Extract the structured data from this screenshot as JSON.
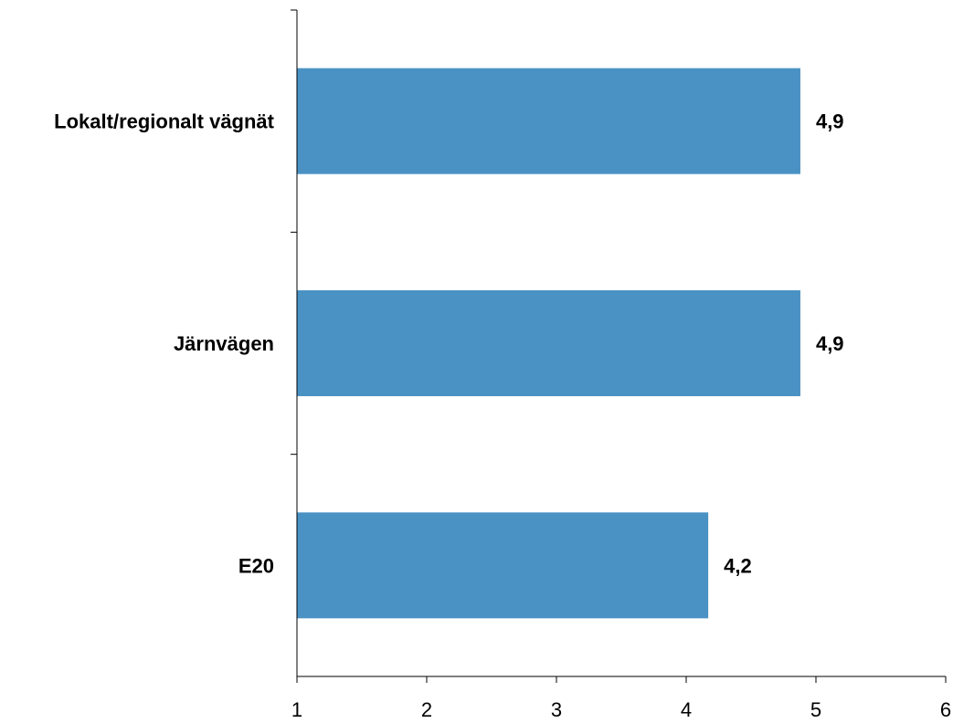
{
  "chart_data": {
    "type": "bar",
    "orientation": "horizontal",
    "categories": [
      "Lokalt/regionalt vägnät",
      "Järnvägen",
      "E20"
    ],
    "values": [
      4.88,
      4.88,
      4.17
    ],
    "data_labels": [
      "4,9",
      "4,9",
      "4,2"
    ],
    "bar_color": "#4a92c4",
    "xlim": [
      1,
      6
    ],
    "xticks": [
      "1",
      "2",
      "3",
      "4",
      "5",
      "6"
    ],
    "grid": false,
    "legend": "none"
  }
}
